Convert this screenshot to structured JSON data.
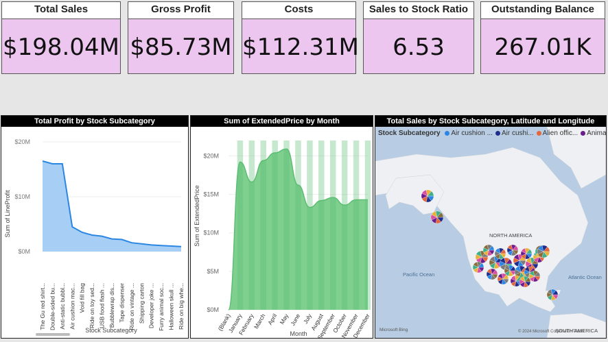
{
  "kpis": [
    {
      "title": "Total Sales",
      "value": "$198.04M"
    },
    {
      "title": "Gross Profit",
      "value": "$85.73M"
    },
    {
      "title": "Costs",
      "value": "$112.31M"
    },
    {
      "title": "Sales to Stock Ratio",
      "value": "6.53"
    },
    {
      "title": "Outstanding Balance",
      "value": "267.01K"
    }
  ],
  "colors": {
    "kpi_bg": "#ecc6ef",
    "area_fill": "#a7cff5",
    "area_line": "#2b86e3",
    "green_fill": "#7fd08f",
    "green_dark": "#5cbd73"
  },
  "chart_data": [
    {
      "type": "area",
      "title": "Total Profit by Stock Subcategory",
      "xlabel": "Stock Subcategory",
      "ylabel": "Sum of LineProfit",
      "yticks": [
        "$0M",
        "$10M",
        "$20M"
      ],
      "ylim": [
        0,
        20
      ],
      "categories": [
        "The Gu red shirt...",
        "Double-sided bu...",
        "Anti-static bubbl...",
        "Air cushion mac...",
        "Void fill bag",
        "Ride on toy sed...",
        "USB food flash ...",
        "Bubblewrap dis...",
        "Tape dispenser",
        "Ride on vintage ...",
        "Shipping carton",
        "Developer joke ...",
        "Furry animal soc...",
        "Halloween skull ...",
        "Ride on big whe..."
      ],
      "values": [
        16.5,
        16.0,
        16.0,
        4.5,
        3.5,
        3.0,
        2.8,
        2.3,
        2.2,
        1.6,
        1.4,
        1.2,
        1.1,
        1.0,
        0.9
      ]
    },
    {
      "type": "area",
      "title": "Sum of ExtendedPrice by Month",
      "xlabel": "Month",
      "ylabel": "Sum of ExtendedPrice",
      "yticks": [
        "$0M",
        "$5M",
        "$10M",
        "$15M",
        "$20M"
      ],
      "ylim": [
        0,
        22
      ],
      "categories": [
        "(Blank)",
        "January",
        "February",
        "March",
        "April",
        "May",
        "June",
        "July",
        "August",
        "September",
        "October",
        "November",
        "December"
      ],
      "values": [
        0,
        19.2,
        16.6,
        19.4,
        20.4,
        20.9,
        16.2,
        13.3,
        14.2,
        14.6,
        13.6,
        14.3,
        14.3
      ]
    }
  ],
  "map": {
    "title": "Total Sales by Stock Subcategory, Latitude and Longitude",
    "legend_title": "Stock Subcategory",
    "legend": [
      {
        "label": "Air cushion ...",
        "color": "#2b86e3"
      },
      {
        "label": "Air cushi...",
        "color": "#1f2e8c"
      },
      {
        "label": "Alien offic...",
        "color": "#e2673c"
      },
      {
        "label": "Animal ...",
        "color": "#6b1d8c"
      }
    ],
    "labels": {
      "continent": "NORTH AMERICA",
      "pacific": "Pacific Ocean",
      "atlantic": "Atlantic Ocean",
      "south": "SOUTH AMERICA",
      "attribution": "© 2024 Microsoft Corporation Terms",
      "bing": "Microsoft Bing"
    }
  }
}
